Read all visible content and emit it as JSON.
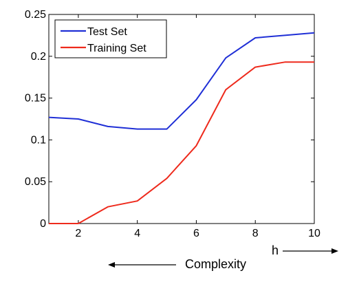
{
  "chart_data": {
    "type": "line",
    "title": "",
    "xlabel": "",
    "ylabel": "",
    "xlim": [
      1,
      10
    ],
    "ylim": [
      0,
      0.25
    ],
    "x_ticks": [
      2,
      4,
      6,
      8,
      10
    ],
    "x_tick_labels": [
      "2",
      "4",
      "6",
      "8",
      "10"
    ],
    "y_ticks": [
      0,
      0.05,
      0.1,
      0.15,
      0.2,
      0.25
    ],
    "y_tick_labels": [
      "0",
      "0.05",
      "0.1",
      "0.15",
      "0.2",
      "0.25"
    ],
    "grid": false,
    "legend_position": "top-left",
    "x": [
      1,
      2,
      3,
      4,
      5,
      6,
      7,
      8,
      9,
      10
    ],
    "series": [
      {
        "name": "Test Set",
        "color": "#1f2fd6",
        "values": [
          0.127,
          0.125,
          0.116,
          0.113,
          0.113,
          0.148,
          0.198,
          0.222,
          0.225,
          0.228
        ]
      },
      {
        "name": "Training Set",
        "color": "#ee2a1c",
        "values": [
          0,
          0,
          0.02,
          0.027,
          0.054,
          0.093,
          0.16,
          0.187,
          0.193,
          0.193
        ]
      }
    ],
    "annotations": [
      {
        "text": "h",
        "arrow": "right"
      },
      {
        "text": "Complexity",
        "arrow": "left"
      }
    ]
  }
}
